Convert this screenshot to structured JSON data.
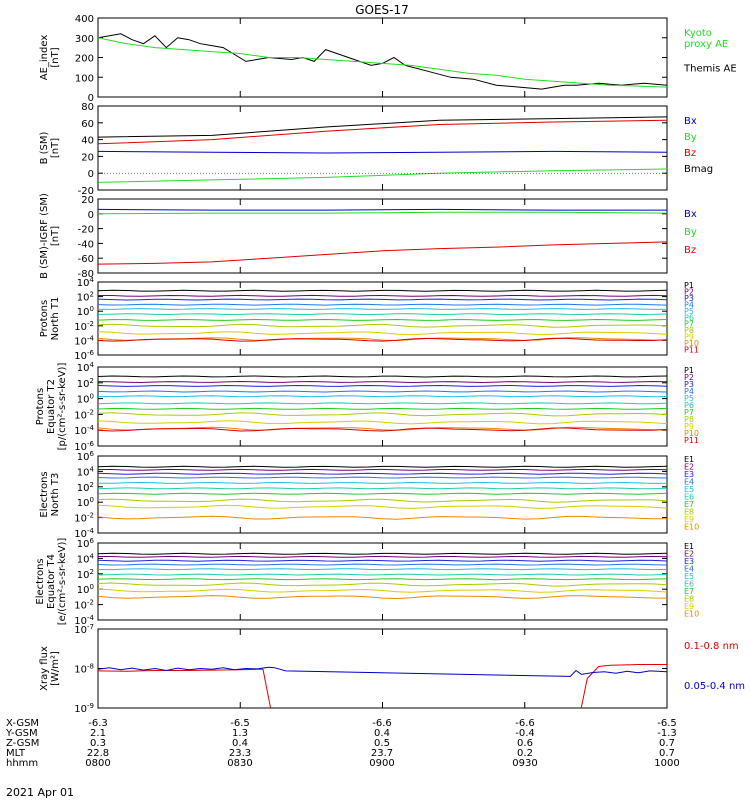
{
  "title": "GOES-17",
  "date": "2021 Apr 01",
  "colors": {
    "black": "#000000",
    "green": "#22dd22",
    "blue": "#0000cc",
    "red": "#dd0000",
    "p_colors": [
      "#000000",
      "#770077",
      "#2222dd",
      "#2277ee",
      "#22bbee",
      "#22ccaa",
      "#22cc22",
      "#aacc00",
      "#ddcc00",
      "#ee8800",
      "#dd0000"
    ]
  },
  "orbit_rows": [
    {
      "label": "X-GSM",
      "values": [
        "-6.3",
        "-6.5",
        "-6.6",
        "-6.6",
        "-6.5"
      ]
    },
    {
      "label": "Y-GSM",
      "values": [
        "2.1",
        "1.3",
        "0.4",
        "-0.4",
        "-1.3"
      ]
    },
    {
      "label": "Z-GSM",
      "values": [
        "0.3",
        "0.4",
        "0.5",
        "0.6",
        "0.7"
      ]
    },
    {
      "label": "MLT",
      "values": [
        "22.8",
        "23.3",
        "23.7",
        "0.2",
        "0.7"
      ]
    },
    {
      "label": "hhmm",
      "values": [
        "0800",
        "0830",
        "0900",
        "0930",
        "1000"
      ]
    }
  ],
  "chart_data": [
    {
      "type": "line",
      "ylabel": "AE_index\n[nT]",
      "ylim": [
        0,
        400
      ],
      "yticks": [
        "400",
        "300",
        "200",
        "100",
        "0"
      ],
      "legend": [
        "Kyoto\nproxy AE",
        "Themis AE"
      ],
      "series": [
        {
          "name": "Themis AE",
          "color": "black",
          "x": [
            0,
            0.04,
            0.06,
            0.08,
            0.1,
            0.12,
            0.14,
            0.16,
            0.18,
            0.2,
            0.22,
            0.26,
            0.3,
            0.34,
            0.36,
            0.38,
            0.4,
            0.44,
            0.48,
            0.5,
            0.52,
            0.54,
            0.58,
            0.62,
            0.66,
            0.7,
            0.74,
            0.78,
            0.8,
            0.82,
            0.84,
            0.88,
            0.92,
            0.96,
            1.0
          ],
          "y": [
            300,
            320,
            290,
            270,
            310,
            250,
            300,
            290,
            270,
            260,
            250,
            180,
            200,
            190,
            200,
            180,
            240,
            200,
            160,
            170,
            200,
            160,
            130,
            100,
            90,
            60,
            50,
            40,
            50,
            60,
            60,
            70,
            60,
            70,
            60
          ]
        },
        {
          "name": "Kyoto proxy AE",
          "color": "green",
          "x": [
            0,
            0.05,
            0.1,
            0.15,
            0.2,
            0.25,
            0.3,
            0.35,
            0.4,
            0.45,
            0.5,
            0.55,
            0.6,
            0.65,
            0.7,
            0.75,
            0.8,
            0.85,
            0.9,
            0.95,
            1.0
          ],
          "y": [
            300,
            270,
            250,
            240,
            230,
            220,
            200,
            200,
            190,
            180,
            170,
            160,
            140,
            120,
            110,
            90,
            80,
            70,
            60,
            55,
            50
          ]
        }
      ]
    },
    {
      "type": "line",
      "ylabel": "B (SM)\n[nT]",
      "ylim": [
        -20,
        80
      ],
      "yticks": [
        "80",
        "60",
        "40",
        "20",
        "0",
        "-20"
      ],
      "legend": [
        "Bx",
        "By",
        "Bz",
        "Bmag"
      ],
      "series": [
        {
          "name": "Bmag",
          "color": "black",
          "x": [
            0,
            0.2,
            0.4,
            0.6,
            0.8,
            1.0
          ],
          "y": [
            43,
            45,
            55,
            63,
            65,
            67
          ]
        },
        {
          "name": "Bz",
          "color": "red",
          "x": [
            0,
            0.2,
            0.4,
            0.6,
            0.8,
            1.0
          ],
          "y": [
            35,
            40,
            50,
            58,
            61,
            63
          ]
        },
        {
          "name": "Bx",
          "color": "blue",
          "x": [
            0,
            0.2,
            0.4,
            0.6,
            0.8,
            1.0
          ],
          "y": [
            26,
            25,
            24,
            25,
            26,
            25
          ]
        },
        {
          "name": "By",
          "color": "green",
          "x": [
            0,
            0.2,
            0.4,
            0.6,
            0.8,
            1.0
          ],
          "y": [
            -11,
            -8,
            -5,
            0,
            3,
            5
          ]
        }
      ]
    },
    {
      "type": "line",
      "ylabel": "B (SM)-IGRF (SM)\n[nT]",
      "ylim": [
        -80,
        20
      ],
      "yticks": [
        "20",
        "0",
        "-20",
        "-40",
        "-60",
        "-80"
      ],
      "legend": [
        "Bx",
        "By",
        "Bz"
      ],
      "series": [
        {
          "name": "Bx",
          "color": "blue",
          "x": [
            0,
            0.2,
            0.4,
            0.6,
            0.8,
            1.0
          ],
          "y": [
            6,
            5,
            5,
            6,
            5,
            5
          ]
        },
        {
          "name": "By",
          "color": "green",
          "x": [
            0,
            0.2,
            0.4,
            0.6,
            0.8,
            1.0
          ],
          "y": [
            0,
            1,
            1,
            2,
            2,
            1
          ]
        },
        {
          "name": "Bz",
          "color": "red",
          "x": [
            0,
            0.1,
            0.2,
            0.3,
            0.4,
            0.5,
            0.6,
            0.7,
            0.8,
            0.9,
            1.0
          ],
          "y": [
            -68,
            -67,
            -65,
            -60,
            -55,
            -50,
            -47,
            -45,
            -42,
            -40,
            -38
          ]
        }
      ]
    },
    {
      "type": "line",
      "scale": "log",
      "ylabel": "Protons\nNorth T1",
      "ylim": [
        -6,
        4
      ],
      "yticks": [
        "10^4",
        "10^2",
        "10^0",
        "10^-2",
        "10^-4",
        "10^-6"
      ],
      "legend": [
        "P1",
        "P2",
        "P3",
        "P4",
        "P5",
        "P6",
        "P7",
        "P8",
        "P9",
        "P10",
        "P11"
      ],
      "levels": [
        2.8,
        2.1,
        1.6,
        0.9,
        0.3,
        -0.4,
        -1.2,
        -2.0,
        -3.0,
        -3.8,
        -3.9
      ]
    },
    {
      "type": "line",
      "scale": "log",
      "ylabel": "Protons\nEquator T2\n[p/(cm²-s-sr-keV)]",
      "ylim": [
        -6,
        4
      ],
      "yticks": [
        "10^4",
        "10^2",
        "10^0",
        "10^-2",
        "10^-4",
        "10^-6"
      ],
      "legend": [
        "P1",
        "P2",
        "P3",
        "P4",
        "P5",
        "P6",
        "P7",
        "P8",
        "P9",
        "P10",
        "P11"
      ],
      "levels": [
        2.8,
        2.1,
        1.6,
        0.9,
        0.3,
        -0.6,
        -1.3,
        -2.0,
        -3.0,
        -3.8,
        -3.9
      ]
    },
    {
      "type": "line",
      "scale": "log",
      "ylabel": "Electrons\nNorth T3",
      "ylim": [
        -4,
        6
      ],
      "yticks": [
        "10^6",
        "10^4",
        "10^2",
        "10^0",
        "10^-2",
        "10^-4"
      ],
      "legend": [
        "E1",
        "E2",
        "E3",
        "E4",
        "E5",
        "E6",
        "E7",
        "E8",
        "E9",
        "E10"
      ],
      "levels": [
        4.6,
        4.2,
        3.7,
        3.2,
        2.5,
        1.8,
        1.1,
        0.2,
        -0.6,
        -2.0
      ]
    },
    {
      "type": "line",
      "scale": "log",
      "ylabel": "Electrons\nEquator T4\n[e/(cm²-s-sr-keV)]",
      "ylim": [
        -4,
        6
      ],
      "yticks": [
        "10^6",
        "10^4",
        "10^2",
        "10^0",
        "10^-2",
        "10^-4"
      ],
      "legend": [
        "E1",
        "E2",
        "E3",
        "E4",
        "E5",
        "E6",
        "E7",
        "E8",
        "E9",
        "E10"
      ],
      "levels": [
        4.6,
        4.2,
        3.7,
        3.2,
        2.6,
        1.9,
        1.3,
        0.6,
        -0.2,
        -1.0
      ]
    },
    {
      "type": "line",
      "scale": "log",
      "ylabel": "Xray flux\n[W/m²]",
      "ylim": [
        -9,
        -7
      ],
      "yticks": [
        "10^-7",
        "10^-8",
        "10^-9"
      ],
      "legend": [
        "0.1-0.8 nm",
        "0.05-0.4 nm"
      ],
      "series": [
        {
          "name": "0.1-0.8 nm",
          "color": "red",
          "x": [
            0,
            0.05,
            0.1,
            0.15,
            0.2,
            0.25,
            0.28,
            0.29,
            0.31,
            0.845,
            0.86,
            0.88,
            0.9,
            0.95,
            1.0
          ],
          "y": [
            -8.06,
            -8.07,
            -8.05,
            -8.05,
            -8.04,
            -8.03,
            -8.02,
            -8.02,
            -9.5,
            -9.3,
            -8.25,
            -7.95,
            -7.92,
            -7.9,
            -7.9
          ]
        },
        {
          "name": "0.05-0.4 nm",
          "color": "blue",
          "x": [
            0,
            0.02,
            0.04,
            0.06,
            0.08,
            0.1,
            0.12,
            0.14,
            0.16,
            0.18,
            0.2,
            0.22,
            0.24,
            0.26,
            0.28,
            0.3,
            0.31,
            0.33,
            0.83,
            0.84,
            0.85,
            0.87,
            0.89,
            0.91,
            0.93,
            0.95,
            0.97,
            1.0
          ],
          "y": [
            -8.02,
            -7.98,
            -8.03,
            -7.99,
            -8.04,
            -8.0,
            -8.05,
            -7.99,
            -8.03,
            -8.0,
            -8.02,
            -7.98,
            -8.03,
            -8.0,
            -8.01,
            -7.97,
            -7.98,
            -8.06,
            -8.2,
            -8.05,
            -8.15,
            -8.1,
            -8.08,
            -8.12,
            -8.07,
            -8.11,
            -8.06,
            -8.08
          ]
        }
      ]
    }
  ]
}
